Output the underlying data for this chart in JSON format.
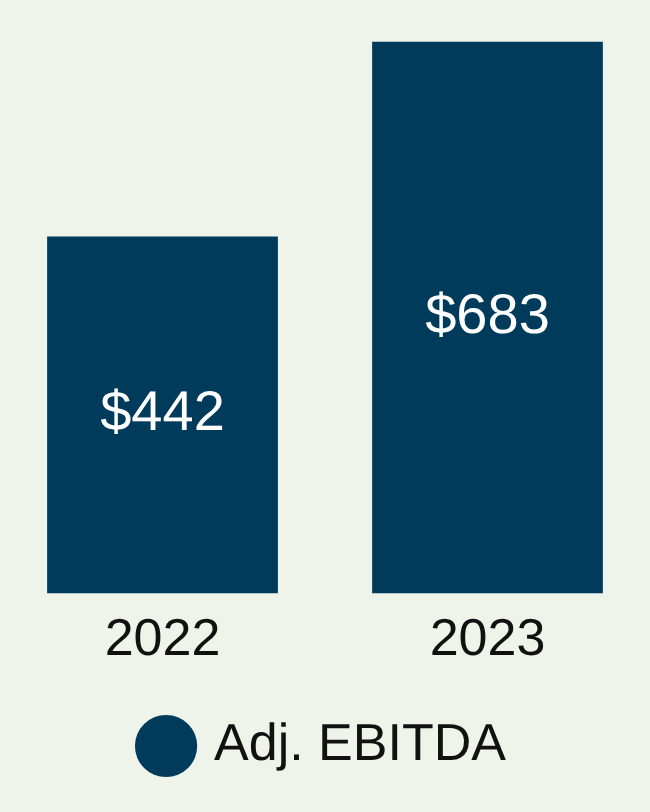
{
  "chart_data": {
    "type": "bar",
    "categories": [
      "2022",
      "2023"
    ],
    "series": [
      {
        "name": "Adj. EBITDA",
        "color": "#003b5c",
        "values": [
          442,
          683
        ],
        "value_labels": [
          "$442",
          "$683"
        ]
      }
    ],
    "legend": "bottom",
    "grid": false
  }
}
